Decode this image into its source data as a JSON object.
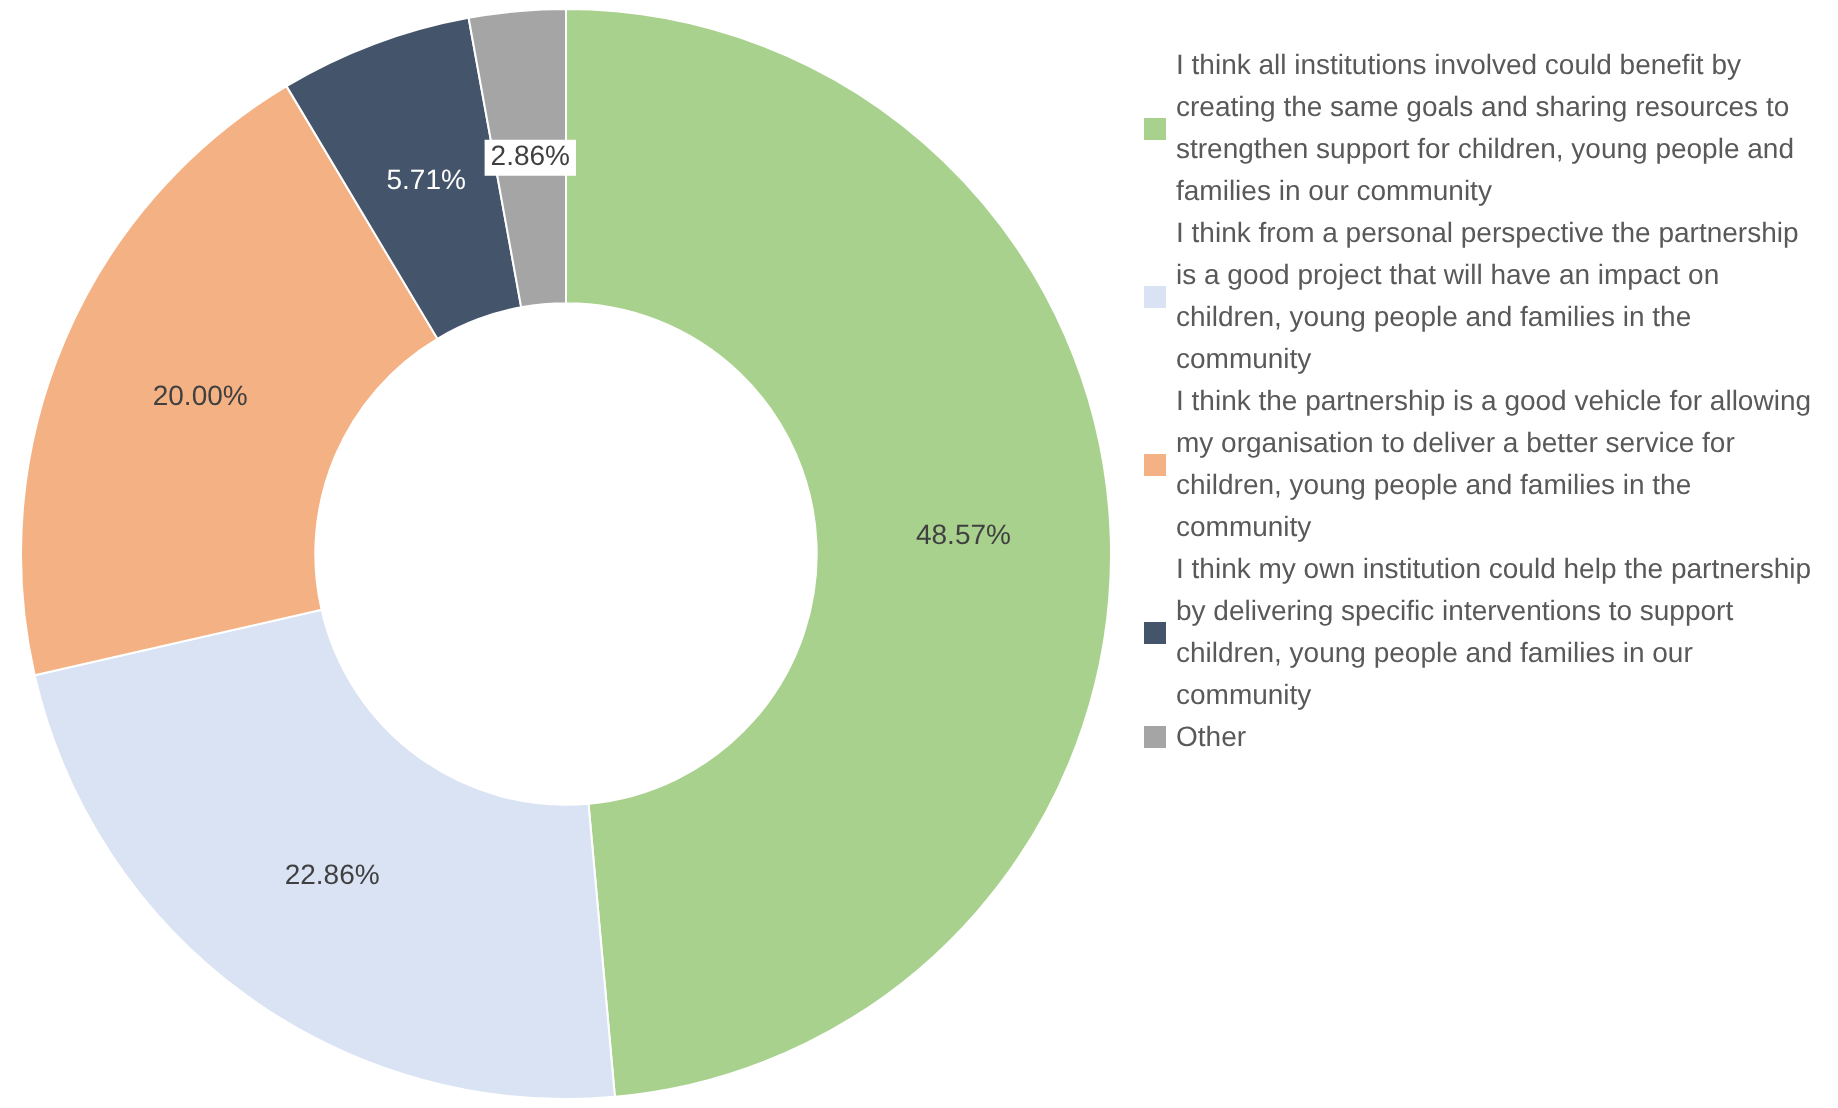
{
  "chart_data": {
    "type": "donut",
    "categories": [
      "I think all institutions involved could benefit by creating the same goals and sharing resources to strengthen support for children, young people and families in our community",
      "I think from a personal perspective the partnership is a good project that will have an impact on children, young people and families in the community",
      "I think the partnership is a good vehicle for allowing my organisation to deliver a better service for children, young people and families in the community",
      "I think my own institution could help the partnership by delivering specific interventions to support children, young people and families in our community",
      "Other"
    ],
    "values": [
      48.57,
      22.86,
      20.0,
      5.71,
      2.86
    ],
    "value_labels": [
      "48.57%",
      "22.86%",
      "20.00%",
      "5.71%",
      "2.86%"
    ],
    "colors": [
      "#a9d18e",
      "#dae3f3",
      "#f4b183",
      "#44546a",
      "#a5a5a5"
    ],
    "legend": "right"
  }
}
